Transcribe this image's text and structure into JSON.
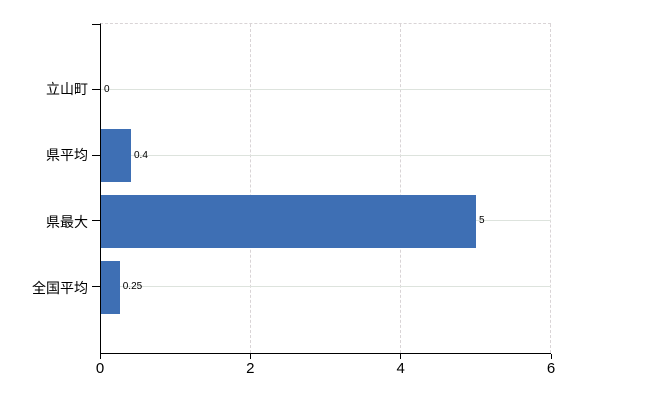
{
  "chart_data": {
    "type": "bar",
    "orientation": "horizontal",
    "title": "",
    "xlabel": "",
    "ylabel": "",
    "categories": [
      "立山町",
      "県平均",
      "県最大",
      "全国平均"
    ],
    "values": [
      0,
      0.4,
      5,
      0.25
    ],
    "value_labels": [
      "0",
      "0.4",
      "5",
      "0.25"
    ],
    "xlim": [
      0,
      6
    ],
    "x_ticks": [
      0,
      2,
      4,
      6
    ],
    "x_tick_labels": [
      "0",
      "2",
      "4",
      "6"
    ],
    "legend": "none",
    "grid": {
      "horizontal": "solid, one line per category",
      "vertical": "dashed at each x tick, plus dashed top border"
    },
    "colors": {
      "bar": "#3e6fb4",
      "grid_horizontal": "#dde3dd",
      "grid_vertical": "#d9d4d6",
      "axis": "#000000",
      "text": "#000000",
      "background": "#ffffff"
    }
  }
}
